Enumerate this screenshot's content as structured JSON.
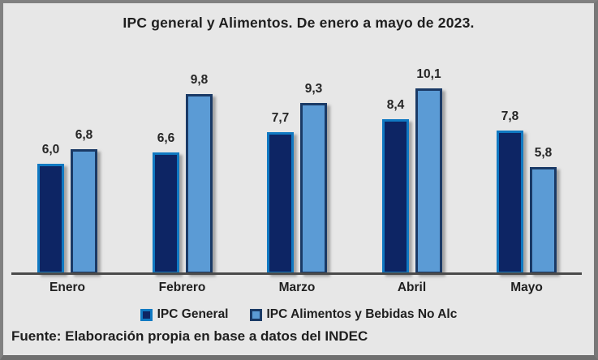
{
  "title": "IPC general y Alimentos. De enero a mayo de 2023.",
  "source_note": "Fuente: Elaboración propia en base a datos del INDEC",
  "colors": {
    "background": "#e7e7e7",
    "frame_border": "#818181",
    "axis_line": "#4a4a4a",
    "text": "#1f1f1f",
    "ipc_general_fill": "#0d2564",
    "ipc_general_border": "#1079c2",
    "alimentos_fill": "#5b9bd5",
    "alimentos_border": "#1a3a66"
  },
  "legend": {
    "position": "bottom",
    "entries": [
      {
        "label": "IPC General",
        "fill": "#0d2564",
        "border": "#1079c2"
      },
      {
        "label": "IPC Alimentos y Bebidas No Alc",
        "fill": "#5b9bd5",
        "border": "#1a3a66"
      }
    ]
  },
  "chart_data": {
    "type": "bar",
    "title": "IPC general y Alimentos. De enero a mayo de 2023.",
    "categories": [
      "Enero",
      "Febrero",
      "Marzo",
      "Abril",
      "Mayo"
    ],
    "series": [
      {
        "name": "IPC General",
        "values": [
          6.0,
          6.6,
          7.7,
          8.4,
          7.8
        ],
        "labels": [
          "6,0",
          "6,6",
          "7,7",
          "8,4",
          "7,8"
        ],
        "fill": "#0d2564",
        "border": "#1079c2"
      },
      {
        "name": "IPC Alimentos y Bebidas No Alc",
        "values": [
          6.8,
          9.8,
          9.3,
          10.1,
          5.8
        ],
        "labels": [
          "6,8",
          "9,8",
          "9,3",
          "10,1",
          "5,8"
        ],
        "fill": "#5b9bd5",
        "border": "#1a3a66"
      }
    ],
    "xlabel": "",
    "ylabel": "",
    "ylim": [
      0,
      12
    ],
    "grid": false,
    "y_axis_visible": false,
    "legend_position": "bottom",
    "decimal_separator": ","
  }
}
